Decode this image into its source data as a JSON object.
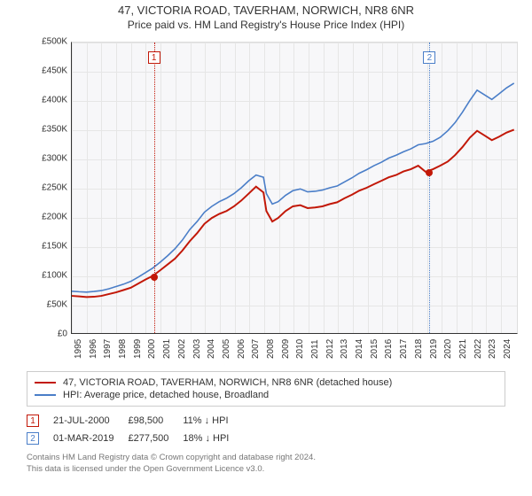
{
  "title_line1": "47, VICTORIA ROAD, TAVERHAM, NORWICH, NR8 6NR",
  "title_line2": "Price paid vs. HM Land Registry's House Price Index (HPI)",
  "chart": {
    "type": "line",
    "background_color": "#f7f7f9",
    "grid_color": "#e6e6e6",
    "axis_color": "#333333",
    "ylim": [
      0,
      500000
    ],
    "ytick_step": 50000,
    "y_tick_labels": [
      "£0",
      "£50K",
      "£100K",
      "£150K",
      "£200K",
      "£250K",
      "£300K",
      "£350K",
      "£400K",
      "£450K",
      "£500K"
    ],
    "x_years": [
      1995,
      1996,
      1997,
      1998,
      1999,
      2000,
      2001,
      2002,
      2003,
      2004,
      2005,
      2006,
      2007,
      2008,
      2009,
      2010,
      2011,
      2012,
      2013,
      2014,
      2015,
      2016,
      2017,
      2018,
      2019,
      2020,
      2021,
      2022,
      2023,
      2024
    ],
    "series": [
      {
        "name": "price_paid",
        "label": "47, VICTORIA ROAD, TAVERHAM, NORWICH, NR8 6NR (detached house)",
        "color": "#c21808",
        "width": 2,
        "data": [
          [
            1995.0,
            64000
          ],
          [
            1995.5,
            63000
          ],
          [
            1996.0,
            62000
          ],
          [
            1996.5,
            62500
          ],
          [
            1997.0,
            64000
          ],
          [
            1997.5,
            67000
          ],
          [
            1998.0,
            70000
          ],
          [
            1998.5,
            74000
          ],
          [
            1999.0,
            78000
          ],
          [
            1999.5,
            85000
          ],
          [
            2000.0,
            92000
          ],
          [
            2000.5,
            98500
          ],
          [
            2001.0,
            108000
          ],
          [
            2001.5,
            118000
          ],
          [
            2002.0,
            128000
          ],
          [
            2002.5,
            142000
          ],
          [
            2003.0,
            158000
          ],
          [
            2003.5,
            172000
          ],
          [
            2004.0,
            188000
          ],
          [
            2004.5,
            198000
          ],
          [
            2005.0,
            205000
          ],
          [
            2005.5,
            210000
          ],
          [
            2006.0,
            218000
          ],
          [
            2006.5,
            228000
          ],
          [
            2007.0,
            240000
          ],
          [
            2007.5,
            252000
          ],
          [
            2008.0,
            242000
          ],
          [
            2008.2,
            210000
          ],
          [
            2008.6,
            192000
          ],
          [
            2009.0,
            198000
          ],
          [
            2009.5,
            210000
          ],
          [
            2010.0,
            218000
          ],
          [
            2010.5,
            220000
          ],
          [
            2011.0,
            215000
          ],
          [
            2011.5,
            216000
          ],
          [
            2012.0,
            218000
          ],
          [
            2012.5,
            222000
          ],
          [
            2013.0,
            225000
          ],
          [
            2013.5,
            232000
          ],
          [
            2014.0,
            238000
          ],
          [
            2014.5,
            245000
          ],
          [
            2015.0,
            250000
          ],
          [
            2015.5,
            256000
          ],
          [
            2016.0,
            262000
          ],
          [
            2016.5,
            268000
          ],
          [
            2017.0,
            272000
          ],
          [
            2017.5,
            278000
          ],
          [
            2018.0,
            282000
          ],
          [
            2018.5,
            288000
          ],
          [
            2019.0,
            277500
          ],
          [
            2019.5,
            282000
          ],
          [
            2020.0,
            288000
          ],
          [
            2020.5,
            295000
          ],
          [
            2021.0,
            306000
          ],
          [
            2021.5,
            320000
          ],
          [
            2022.0,
            336000
          ],
          [
            2022.5,
            348000
          ],
          [
            2023.0,
            340000
          ],
          [
            2023.5,
            332000
          ],
          [
            2024.0,
            338000
          ],
          [
            2024.5,
            345000
          ],
          [
            2025.0,
            350000
          ]
        ]
      },
      {
        "name": "hpi",
        "label": "HPI: Average price, detached house, Broadland",
        "color": "#4a7ec8",
        "width": 1.6,
        "data": [
          [
            1995.0,
            72000
          ],
          [
            1995.5,
            71000
          ],
          [
            1996.0,
            70500
          ],
          [
            1996.5,
            71500
          ],
          [
            1997.0,
            73000
          ],
          [
            1997.5,
            76000
          ],
          [
            1998.0,
            80000
          ],
          [
            1998.5,
            84000
          ],
          [
            1999.0,
            89000
          ],
          [
            1999.5,
            96000
          ],
          [
            2000.0,
            104000
          ],
          [
            2000.5,
            112000
          ],
          [
            2001.0,
            122000
          ],
          [
            2001.5,
            133000
          ],
          [
            2002.0,
            145000
          ],
          [
            2002.5,
            160000
          ],
          [
            2003.0,
            178000
          ],
          [
            2003.5,
            192000
          ],
          [
            2004.0,
            208000
          ],
          [
            2004.5,
            218000
          ],
          [
            2005.0,
            226000
          ],
          [
            2005.5,
            232000
          ],
          [
            2006.0,
            240000
          ],
          [
            2006.5,
            250000
          ],
          [
            2007.0,
            262000
          ],
          [
            2007.5,
            272000
          ],
          [
            2008.0,
            268000
          ],
          [
            2008.2,
            240000
          ],
          [
            2008.6,
            222000
          ],
          [
            2009.0,
            226000
          ],
          [
            2009.5,
            237000
          ],
          [
            2010.0,
            245000
          ],
          [
            2010.5,
            248000
          ],
          [
            2011.0,
            243000
          ],
          [
            2011.5,
            244000
          ],
          [
            2012.0,
            246000
          ],
          [
            2012.5,
            250000
          ],
          [
            2013.0,
            253000
          ],
          [
            2013.5,
            260000
          ],
          [
            2014.0,
            267000
          ],
          [
            2014.5,
            275000
          ],
          [
            2015.0,
            281000
          ],
          [
            2015.5,
            288000
          ],
          [
            2016.0,
            294000
          ],
          [
            2016.5,
            301000
          ],
          [
            2017.0,
            306000
          ],
          [
            2017.5,
            312000
          ],
          [
            2018.0,
            317000
          ],
          [
            2018.5,
            324000
          ],
          [
            2019.0,
            326000
          ],
          [
            2019.5,
            330000
          ],
          [
            2020.0,
            337000
          ],
          [
            2020.5,
            348000
          ],
          [
            2021.0,
            362000
          ],
          [
            2021.5,
            380000
          ],
          [
            2022.0,
            400000
          ],
          [
            2022.5,
            418000
          ],
          [
            2023.0,
            410000
          ],
          [
            2023.5,
            402000
          ],
          [
            2024.0,
            412000
          ],
          [
            2024.5,
            422000
          ],
          [
            2025.0,
            430000
          ]
        ]
      }
    ],
    "xlim": [
      1995,
      2025.2
    ],
    "markers": [
      {
        "n": "1",
        "year": 2000.55,
        "price": 98500,
        "color": "#c21808",
        "box_top": 10
      },
      {
        "n": "2",
        "year": 2019.17,
        "price": 277500,
        "color": "#4a7ec8",
        "box_top": 10
      }
    ]
  },
  "legend": {
    "rows": [
      {
        "color": "#c21808",
        "label": "47, VICTORIA ROAD, TAVERHAM, NORWICH, NR8 6NR (detached house)"
      },
      {
        "color": "#4a7ec8",
        "label": "HPI: Average price, detached house, Broadland"
      }
    ]
  },
  "transactions": [
    {
      "n": "1",
      "color": "#c21808",
      "date": "21-JUL-2000",
      "price": "£98,500",
      "delta": "11% ↓ HPI"
    },
    {
      "n": "2",
      "color": "#4a7ec8",
      "date": "01-MAR-2019",
      "price": "£277,500",
      "delta": "18% ↓ HPI"
    }
  ],
  "footer_line1": "Contains HM Land Registry data © Crown copyright and database right 2024.",
  "footer_line2": "This data is licensed under the Open Government Licence v3.0."
}
